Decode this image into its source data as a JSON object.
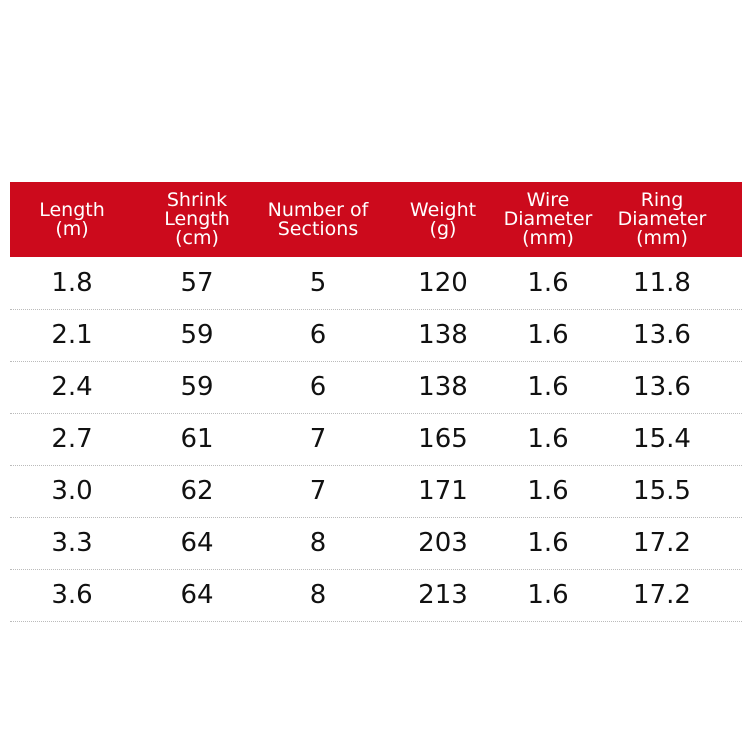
{
  "table": {
    "header": [
      [
        "Length",
        "(m)"
      ],
      [
        "Shrink",
        "Length",
        "(cm)"
      ],
      [
        "Number of",
        "Sections"
      ],
      [
        "Weight",
        "(g)"
      ],
      [
        "Wire",
        "Diameter",
        "(mm)"
      ],
      [
        "Ring",
        "Diameter",
        "(mm)"
      ]
    ],
    "rows": [
      [
        "1.8",
        "57",
        "5",
        "120",
        "1.6",
        "11.8"
      ],
      [
        "2.1",
        "59",
        "6",
        "138",
        "1.6",
        "13.6"
      ],
      [
        "2.4",
        "59",
        "6",
        "138",
        "1.6",
        "13.6"
      ],
      [
        "2.7",
        "61",
        "7",
        "165",
        "1.6",
        "15.4"
      ],
      [
        "3.0",
        "62",
        "7",
        "171",
        "1.6",
        "15.5"
      ],
      [
        "3.3",
        "64",
        "8",
        "203",
        "1.6",
        "17.2"
      ],
      [
        "3.6",
        "64",
        "8",
        "213",
        "1.6",
        "17.2"
      ]
    ]
  }
}
